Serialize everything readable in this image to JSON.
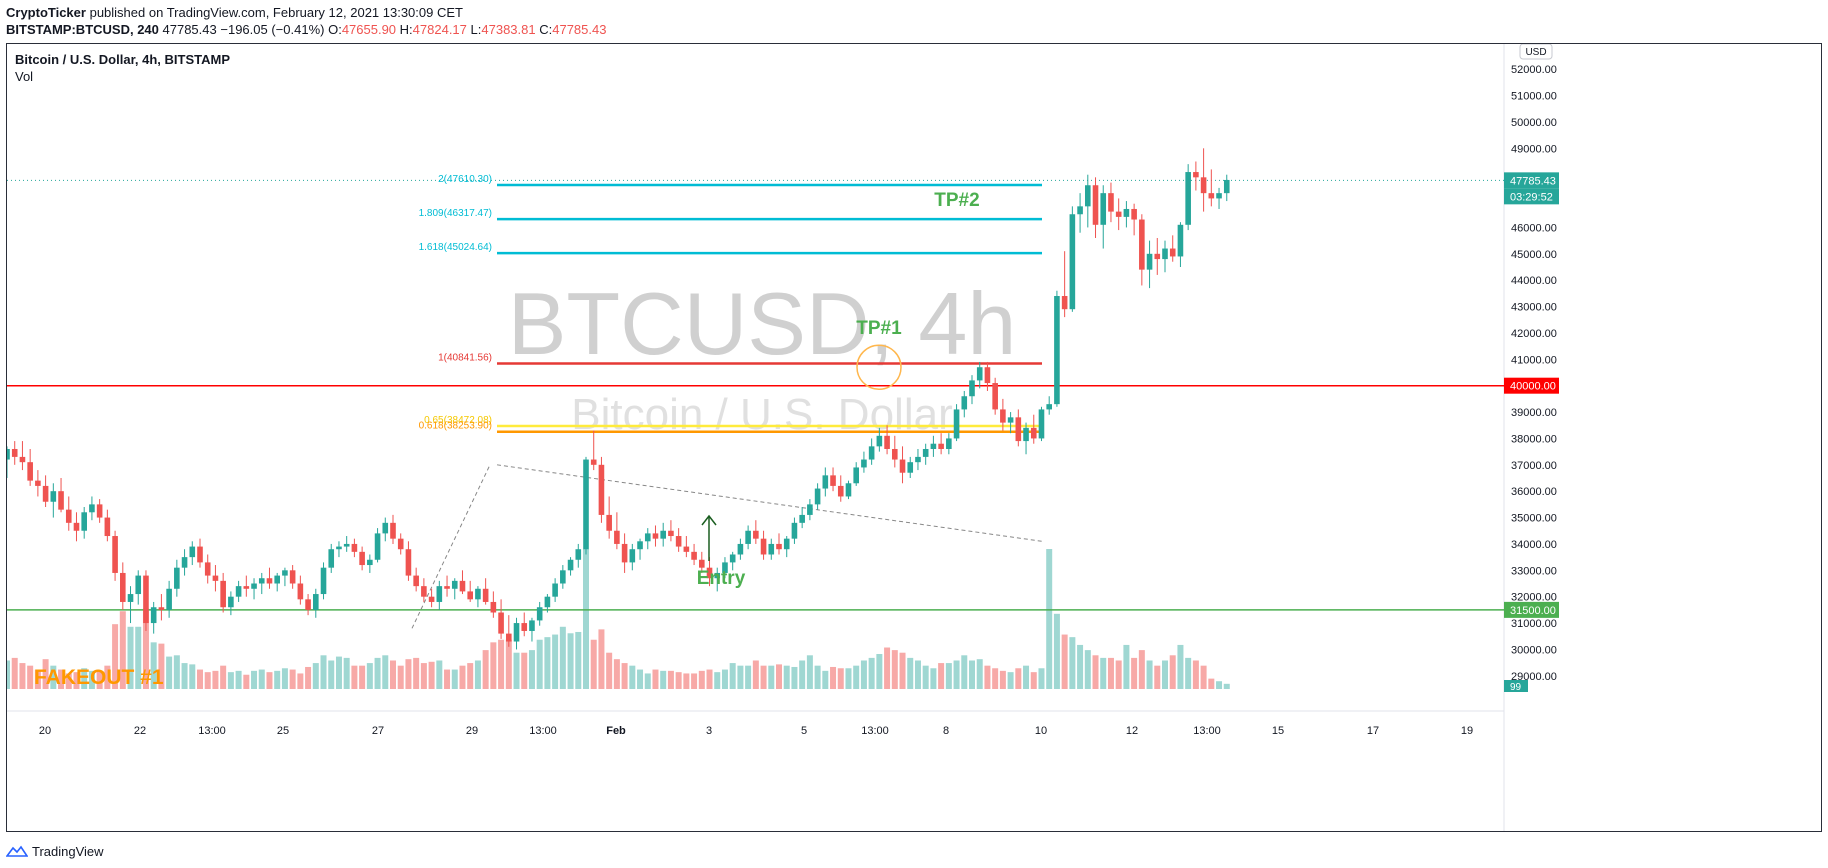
{
  "header": {
    "author": "CryptoTicker",
    "published_text": "published on TradingView.com, February 12, 2021 13:30:09 CET",
    "symbol": "BITSTAMP:BTCUSD, 240",
    "last": "47785.43",
    "change": "−196.05 (−0.41%)",
    "o_label": "O:",
    "o_value": "47655.90",
    "h_label": "H:",
    "h_value": "47824.17",
    "l_label": "L:",
    "l_value": "47383.81",
    "c_label": "C:",
    "c_value": "47785.43"
  },
  "legend": {
    "title": "Bitcoin / U.S. Dollar, 4h, BITSTAMP",
    "vol": "Vol"
  },
  "watermark": {
    "symbol": "BTCUSD, 4h",
    "name": "Bitcoin / U.S. Dollar"
  },
  "footer": {
    "brand": "TradingView",
    "brand_icon": "tradingview-logo-icon"
  },
  "colors": {
    "up": "#26a69a",
    "down": "#ef5350",
    "up_vol": "#9fd7d2",
    "down_vol": "#f7a9a7",
    "fib_cyan": "#00bcd4",
    "fib_red": "#e53935",
    "fib_yellow": "#ffeb3b",
    "fib_orange": "#ff9800",
    "level_red": "#ff0000",
    "level_green": "#4caf50",
    "annotation_green": "#4caf50",
    "fakeout_orange": "#ff9800"
  },
  "chart_data": {
    "type": "candlestick",
    "currency_badge": "USD",
    "ylim": [
      28500,
      52500
    ],
    "y_ticks": [
      "29000.00",
      "30000.00",
      "31000.00",
      "32000.00",
      "33000.00",
      "34000.00",
      "35000.00",
      "36000.00",
      "37000.00",
      "38000.00",
      "39000.00",
      "41000.00",
      "42000.00",
      "43000.00",
      "44000.00",
      "45000.00",
      "46000.00",
      "49000.00",
      "50000.00",
      "51000.00",
      "52000.00"
    ],
    "x_ticks": [
      "20",
      "22",
      "13:00",
      "25",
      "27",
      "29",
      "13:00",
      "Feb",
      "3",
      "5",
      "13:00",
      "8",
      "10",
      "12",
      "13:00",
      "15",
      "17",
      "19"
    ],
    "price_badges": {
      "last": {
        "value": "47785.43",
        "countdown": "03:29:52"
      },
      "level_40000": "40000.00",
      "level_31500": "31500.00",
      "volume": "99"
    },
    "horizontal_levels": [
      40000,
      31500
    ],
    "fib_levels": [
      {
        "label": "2(47610.30)",
        "value": 47610.3
      },
      {
        "label": "1.809(46317.47)",
        "value": 46317.47
      },
      {
        "label": "1.618(45024.64)",
        "value": 45024.64
      },
      {
        "label": "1(40841.56)",
        "value": 40841.56
      },
      {
        "label": "0.65(38472.08)",
        "value": 38472.08
      },
      {
        "label": "0.618(38253.90)",
        "value": 38253.9
      }
    ],
    "annotations": {
      "tp1": "TP#1",
      "tp2": "TP#2",
      "entry": "Entry",
      "fakeout": "FAKEOUT #1"
    },
    "candles": [
      [
        37200,
        37700,
        36500,
        37600
      ],
      [
        37600,
        37900,
        37000,
        37300
      ],
      [
        37300,
        37900,
        36800,
        37100
      ],
      [
        37100,
        37600,
        36200,
        36400
      ],
      [
        36400,
        36800,
        35800,
        36200
      ],
      [
        36200,
        36600,
        35400,
        35600
      ],
      [
        35600,
        36300,
        35000,
        36000
      ],
      [
        36000,
        36500,
        35200,
        35300
      ],
      [
        35300,
        35800,
        34500,
        34800
      ],
      [
        34800,
        35200,
        34100,
        34500
      ],
      [
        34500,
        35400,
        34200,
        35200
      ],
      [
        35200,
        35800,
        34900,
        35500
      ],
      [
        35500,
        35700,
        34800,
        35000
      ],
      [
        35000,
        35300,
        34100,
        34300
      ],
      [
        34300,
        34500,
        32600,
        32900
      ],
      [
        32900,
        33300,
        31500,
        31800
      ],
      [
        31800,
        32400,
        31000,
        32100
      ],
      [
        32100,
        33000,
        31700,
        32800
      ],
      [
        32800,
        33000,
        30700,
        31000
      ],
      [
        31000,
        31800,
        30600,
        31600
      ],
      [
        31600,
        32100,
        31100,
        31500
      ],
      [
        31500,
        32600,
        31200,
        32300
      ],
      [
        32300,
        33400,
        32000,
        33100
      ],
      [
        33100,
        33800,
        32800,
        33500
      ],
      [
        33500,
        34100,
        33200,
        33900
      ],
      [
        33900,
        34200,
        33100,
        33300
      ],
      [
        33300,
        33600,
        32500,
        32800
      ],
      [
        32800,
        33200,
        32200,
        32600
      ],
      [
        32600,
        32900,
        31400,
        31600
      ],
      [
        31600,
        32200,
        31300,
        32000
      ],
      [
        32000,
        32600,
        31800,
        32400
      ],
      [
        32400,
        32800,
        32000,
        32300
      ],
      [
        32300,
        32700,
        31900,
        32500
      ],
      [
        32500,
        32900,
        32100,
        32700
      ],
      [
        32700,
        33100,
        32300,
        32500
      ],
      [
        32500,
        32900,
        32200,
        32800
      ],
      [
        32800,
        33100,
        32400,
        33000
      ],
      [
        33000,
        33200,
        32300,
        32500
      ],
      [
        32500,
        32800,
        31700,
        31900
      ],
      [
        31900,
        32100,
        31300,
        31500
      ],
      [
        31500,
        32300,
        31200,
        32100
      ],
      [
        32100,
        33300,
        31900,
        33100
      ],
      [
        33100,
        34000,
        32900,
        33800
      ],
      [
        33800,
        34100,
        33500,
        33900
      ],
      [
        33900,
        34300,
        33700,
        34000
      ],
      [
        34000,
        34200,
        33500,
        33700
      ],
      [
        33700,
        33900,
        33000,
        33200
      ],
      [
        33200,
        33600,
        32900,
        33400
      ],
      [
        33400,
        34600,
        33300,
        34400
      ],
      [
        34400,
        35000,
        34100,
        34800
      ],
      [
        34800,
        35100,
        34000,
        34200
      ],
      [
        34200,
        34400,
        33600,
        33800
      ],
      [
        33800,
        34100,
        32600,
        32800
      ],
      [
        32800,
        33100,
        32200,
        32400
      ],
      [
        32400,
        32700,
        31800,
        32000
      ],
      [
        32000,
        32300,
        31600,
        31800
      ],
      [
        31800,
        32600,
        31500,
        32400
      ],
      [
        32400,
        32800,
        32000,
        32300
      ],
      [
        32300,
        32700,
        31900,
        32600
      ],
      [
        32600,
        33000,
        32100,
        32200
      ],
      [
        32200,
        32600,
        31800,
        31900
      ],
      [
        31900,
        32400,
        31600,
        32300
      ],
      [
        32300,
        32700,
        31700,
        31800
      ],
      [
        31800,
        32200,
        31200,
        31400
      ],
      [
        31400,
        31900,
        30400,
        30600
      ],
      [
        30600,
        31300,
        30100,
        30300
      ],
      [
        30300,
        31200,
        30000,
        31000
      ],
      [
        31000,
        31400,
        30500,
        30700
      ],
      [
        30700,
        31200,
        30300,
        31100
      ],
      [
        31100,
        31800,
        30900,
        31600
      ],
      [
        31600,
        32100,
        31400,
        32000
      ],
      [
        32000,
        32700,
        31800,
        32500
      ],
      [
        32500,
        33200,
        32300,
        33000
      ],
      [
        33000,
        33500,
        32800,
        33400
      ],
      [
        33400,
        34000,
        33100,
        33800
      ],
      [
        33800,
        37300,
        33600,
        37200
      ],
      [
        37200,
        38300,
        36800,
        37000
      ],
      [
        37000,
        37300,
        34800,
        35100
      ],
      [
        35100,
        35800,
        34200,
        34500
      ],
      [
        34500,
        35200,
        33800,
        34000
      ],
      [
        34000,
        34400,
        32900,
        33300
      ],
      [
        33300,
        34000,
        33000,
        33800
      ],
      [
        33800,
        34200,
        33400,
        34100
      ],
      [
        34100,
        34600,
        33800,
        34400
      ],
      [
        34400,
        34700,
        33900,
        34200
      ],
      [
        34200,
        34800,
        33900,
        34500
      ],
      [
        34500,
        34900,
        34100,
        34300
      ],
      [
        34300,
        34600,
        33700,
        33900
      ],
      [
        33900,
        34300,
        33500,
        33700
      ],
      [
        33700,
        34000,
        33200,
        33400
      ],
      [
        33400,
        33700,
        32900,
        33100
      ],
      [
        33100,
        33500,
        32400,
        32700
      ],
      [
        32700,
        33100,
        32200,
        32900
      ],
      [
        32900,
        33500,
        32700,
        33300
      ],
      [
        33300,
        33700,
        33000,
        33600
      ],
      [
        33600,
        34200,
        33400,
        34000
      ],
      [
        34000,
        34700,
        33800,
        34500
      ],
      [
        34500,
        34900,
        34000,
        34200
      ],
      [
        34200,
        34500,
        33400,
        33600
      ],
      [
        33600,
        34200,
        33400,
        34000
      ],
      [
        34000,
        34400,
        33600,
        33800
      ],
      [
        33800,
        34300,
        33500,
        34200
      ],
      [
        34200,
        35000,
        34000,
        34800
      ],
      [
        34800,
        35400,
        34600,
        35100
      ],
      [
        35100,
        35700,
        34900,
        35500
      ],
      [
        35500,
        36300,
        35300,
        36100
      ],
      [
        36100,
        36900,
        35800,
        36600
      ],
      [
        36600,
        36900,
        36000,
        36200
      ],
      [
        36200,
        36600,
        35600,
        35800
      ],
      [
        35800,
        36400,
        35700,
        36300
      ],
      [
        36300,
        37100,
        36200,
        36900
      ],
      [
        36900,
        37500,
        36700,
        37200
      ],
      [
        37200,
        38000,
        37000,
        37700
      ],
      [
        37700,
        38400,
        37500,
        38100
      ],
      [
        38100,
        38500,
        37400,
        37600
      ],
      [
        37600,
        38100,
        36900,
        37200
      ],
      [
        37200,
        37700,
        36300,
        36700
      ],
      [
        36700,
        37300,
        36500,
        37100
      ],
      [
        37100,
        37600,
        36800,
        37300
      ],
      [
        37300,
        37800,
        37000,
        37600
      ],
      [
        37600,
        38100,
        37300,
        37800
      ],
      [
        37800,
        38200,
        37400,
        37600
      ],
      [
        37600,
        38200,
        37400,
        38000
      ],
      [
        38000,
        39300,
        37900,
        39100
      ],
      [
        39100,
        39800,
        38800,
        39600
      ],
      [
        39600,
        40400,
        39300,
        40200
      ],
      [
        40200,
        40900,
        39900,
        40700
      ],
      [
        40700,
        40900,
        39800,
        40100
      ],
      [
        40100,
        40300,
        38900,
        39100
      ],
      [
        39100,
        39500,
        38300,
        38600
      ],
      [
        38600,
        39000,
        38200,
        38800
      ],
      [
        38800,
        39100,
        37700,
        37900
      ],
      [
        37900,
        38600,
        37400,
        38400
      ],
      [
        38400,
        38900,
        37800,
        38000
      ],
      [
        38000,
        39200,
        37900,
        39100
      ],
      [
        39100,
        39600,
        38900,
        39300
      ],
      [
        39300,
        43600,
        39200,
        43400
      ],
      [
        43400,
        45100,
        42600,
        42900
      ],
      [
        42900,
        46800,
        42800,
        46500
      ],
      [
        46500,
        47300,
        45800,
        46800
      ],
      [
        46800,
        48000,
        46000,
        47600
      ],
      [
        47600,
        47900,
        45600,
        46100
      ],
      [
        46100,
        47600,
        45200,
        47300
      ],
      [
        47300,
        47700,
        46200,
        46600
      ],
      [
        46600,
        47100,
        45900,
        46400
      ],
      [
        46400,
        47000,
        46000,
        46700
      ],
      [
        46700,
        46900,
        45700,
        46300
      ],
      [
        46300,
        46500,
        43800,
        44400
      ],
      [
        44400,
        45500,
        43700,
        45000
      ],
      [
        45000,
        45600,
        44200,
        44800
      ],
      [
        44800,
        45500,
        44300,
        45200
      ],
      [
        45200,
        45700,
        44700,
        44900
      ],
      [
        44900,
        46200,
        44500,
        46100
      ],
      [
        46100,
        48400,
        45900,
        48100
      ],
      [
        48100,
        48500,
        47400,
        47900
      ],
      [
        47900,
        49000,
        46600,
        47300
      ],
      [
        47300,
        48200,
        46800,
        47100
      ],
      [
        47100,
        47500,
        46700,
        47300
      ],
      [
        47300,
        48000,
        47000,
        47800
      ]
    ],
    "volumes": [
      22,
      24,
      20,
      18,
      15,
      23,
      18,
      15,
      12,
      13,
      16,
      14,
      14,
      18,
      50,
      60,
      48,
      48,
      62,
      36,
      35,
      25,
      26,
      20,
      19,
      15,
      13,
      14,
      18,
      13,
      14,
      11,
      14,
      15,
      13,
      14,
      16,
      15,
      12,
      17,
      20,
      26,
      22,
      25,
      24,
      18,
      18,
      20,
      24,
      26,
      22,
      18,
      23,
      24,
      20,
      21,
      22,
      15,
      15,
      18,
      20,
      22,
      30,
      36,
      38,
      38,
      28,
      28,
      30,
      38,
      40,
      42,
      48,
      43,
      44,
      108,
      38,
      46,
      28,
      23,
      20,
      18,
      15,
      12,
      15,
      14,
      14,
      13,
      12,
      12,
      14,
      15,
      13,
      15,
      20,
      18,
      18,
      22,
      18,
      18,
      19,
      18,
      17,
      22,
      26,
      18,
      14,
      17,
      16,
      16,
      18,
      22,
      24,
      27,
      32,
      30,
      28,
      24,
      22,
      18,
      16,
      20,
      20,
      22,
      26,
      22,
      23,
      18,
      16,
      14,
      13,
      16,
      18,
      13,
      16,
      108,
      58,
      42,
      40,
      34,
      30,
      26,
      24,
      24,
      22,
      34,
      24,
      30,
      22,
      18,
      22,
      26,
      34,
      24,
      22,
      18,
      8,
      6,
      4
    ]
  }
}
